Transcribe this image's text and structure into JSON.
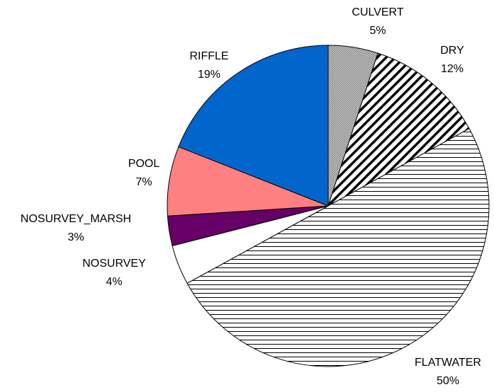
{
  "chart_data": {
    "type": "pie",
    "categories": [
      "CULVERT",
      "DRY",
      "FLATWATER",
      "NOSURVEY",
      "NOSURVEY_MARSH",
      "POOL",
      "RIFFLE"
    ],
    "values": [
      5,
      12,
      50,
      4,
      3,
      7,
      19
    ],
    "value_labels": [
      "5%",
      "12%",
      "50%",
      "4%",
      "3%",
      "7%",
      "19%"
    ],
    "colors": [
      "#808080",
      "#000000",
      "#000000",
      "#ffffff",
      "#660066",
      "#ff8080",
      "#0066cc"
    ],
    "patterns": [
      "crosshatch",
      "diagonal",
      "horizontal",
      null,
      null,
      null,
      null
    ]
  }
}
